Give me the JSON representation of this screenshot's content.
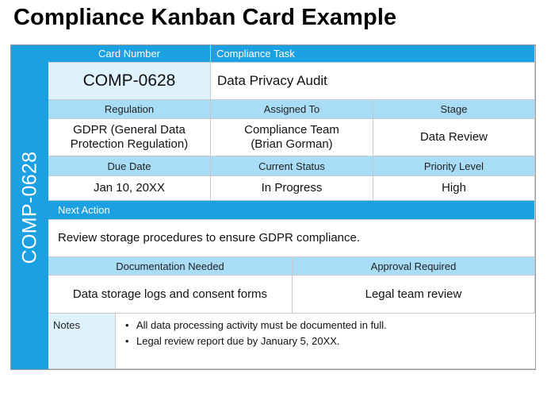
{
  "title": "Compliance Kanban Card Example",
  "colors": {
    "accent": "#1ba1e2",
    "header_light": "#a9dcf6",
    "card_number_bg": "#dff3fd"
  },
  "card": {
    "spine_label": "COMP-0628",
    "card_number_label": "Card Number",
    "card_number": "COMP-0628",
    "compliance_task_label": "Compliance Task",
    "compliance_task": "Data Privacy Audit",
    "regulation_label": "Regulation",
    "regulation": "GDPR (General Data Protection Regulation)",
    "assigned_to_label": "Assigned To",
    "assigned_to": "Compliance Team (Brian Gorman)",
    "stage_label": "Stage",
    "stage": "Data Review",
    "due_date_label": "Due Date",
    "due_date": "Jan 10, 20XX",
    "current_status_label": "Current Status",
    "current_status": "In Progress",
    "priority_label": "Priority Level",
    "priority": "High",
    "next_action_label": "Next Action",
    "next_action": "Review storage procedures to ensure GDPR compliance.",
    "documentation_label": "Documentation Needed",
    "documentation": "Data storage logs and consent forms",
    "approval_label": "Approval Required",
    "approval": "Legal team review",
    "notes_label": "Notes",
    "notes": [
      "All data processing activity must be documented in full.",
      "Legal review report due by January 5, 20XX."
    ]
  }
}
